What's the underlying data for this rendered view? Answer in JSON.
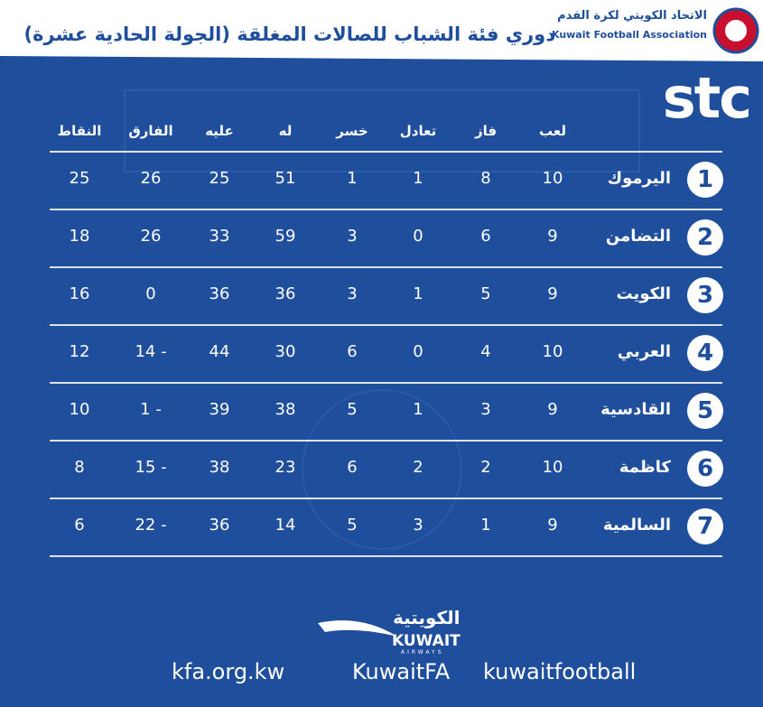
{
  "header": {
    "title": "دوري فئة الشباب للصالات المغلقة (الجولة الحادية عشرة)",
    "association_ar": "الاتحاد الكويتي لكرة القدم",
    "association_en": "Kuwait Football Association",
    "sponsor": "stc"
  },
  "table": {
    "headers": [
      "لعب",
      "فاز",
      "تعادل",
      "خسر",
      "له",
      "عليه",
      "الفارق",
      "النقاط"
    ],
    "rows": [
      {
        "rank": 1,
        "team": "اليرموك",
        "values": [
          10,
          8,
          1,
          1,
          51,
          25,
          26,
          25
        ]
      },
      {
        "rank": 2,
        "team": "التضامن",
        "values": [
          9,
          6,
          0,
          3,
          59,
          33,
          26,
          18
        ]
      },
      {
        "rank": 3,
        "team": "الكويت",
        "values": [
          9,
          5,
          1,
          3,
          36,
          36,
          0,
          16
        ]
      },
      {
        "rank": 4,
        "team": "العربي",
        "values": [
          10,
          4,
          0,
          6,
          30,
          44,
          "14 -",
          12
        ]
      },
      {
        "rank": 5,
        "team": "القادسية",
        "values": [
          9,
          3,
          1,
          5,
          38,
          39,
          "1 -",
          10
        ]
      },
      {
        "rank": 6,
        "team": "كاظمة",
        "values": [
          10,
          2,
          2,
          6,
          23,
          38,
          "15 -",
          8
        ]
      },
      {
        "rank": 7,
        "team": "السالمية",
        "values": [
          9,
          1,
          3,
          5,
          14,
          36,
          "22 -",
          6
        ]
      }
    ]
  },
  "footer": {
    "airline_ar": "الكويتية",
    "airline": "KUWAIT",
    "airline_sub": "AIRWAYS",
    "website": "kfa.org.kw",
    "social": "KuwaitFA",
    "instagram": "kuwaitfootball"
  }
}
